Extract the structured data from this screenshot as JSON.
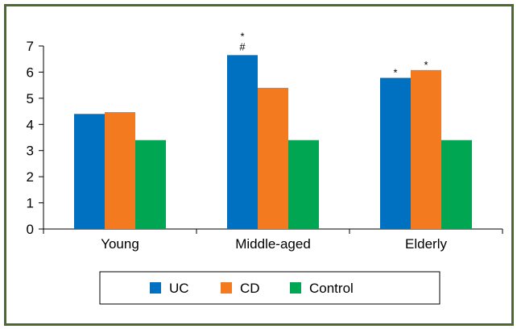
{
  "chart_data": {
    "type": "bar",
    "title": "",
    "xlabel": "",
    "ylabel": "",
    "ylim": [
      0,
      7
    ],
    "yticks": [
      "0",
      "1",
      "2",
      "3",
      "4",
      "5",
      "6",
      "7"
    ],
    "categories": [
      "Young",
      "Middle-aged",
      "Elderly"
    ],
    "series": [
      {
        "name": "UC",
        "color": "#0070c0",
        "values": [
          4.4,
          6.65,
          5.78
        ]
      },
      {
        "name": "CD",
        "color": "#f47a20",
        "values": [
          4.47,
          5.4,
          6.08
        ]
      },
      {
        "name": "Control",
        "color": "#00a651",
        "values": [
          3.4,
          3.4,
          3.4
        ]
      }
    ],
    "annotations": [
      {
        "series": "UC",
        "category": "Middle-aged",
        "marks": [
          "*",
          "#"
        ]
      },
      {
        "series": "UC",
        "category": "Elderly",
        "marks": [
          "*"
        ]
      },
      {
        "series": "CD",
        "category": "Elderly",
        "marks": [
          "*"
        ]
      }
    ],
    "grid": false,
    "legend_position": "bottom",
    "frame_color": "#4a6b2a"
  }
}
